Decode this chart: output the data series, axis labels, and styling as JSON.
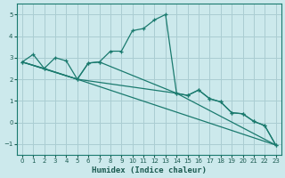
{
  "xlabel": "Humidex (Indice chaleur)",
  "xlim": [
    -0.5,
    23.5
  ],
  "ylim": [
    -1.5,
    5.5
  ],
  "xticks": [
    0,
    1,
    2,
    3,
    4,
    5,
    6,
    7,
    8,
    9,
    10,
    11,
    12,
    13,
    14,
    15,
    16,
    17,
    18,
    19,
    20,
    21,
    22,
    23
  ],
  "yticks": [
    -1,
    0,
    1,
    2,
    3,
    4,
    5
  ],
  "background_color": "#cce9ec",
  "grid_color": "#aacdd2",
  "line_color": "#1a7a6e",
  "line1_x": [
    0,
    1,
    2,
    3,
    4,
    5,
    6,
    7,
    8,
    9,
    10,
    11,
    12,
    13,
    14,
    15,
    16,
    17,
    18,
    19,
    20,
    21,
    22,
    23
  ],
  "line1_y": [
    2.8,
    3.15,
    2.5,
    3.0,
    2.85,
    2.0,
    2.75,
    2.8,
    3.3,
    3.3,
    4.25,
    4.35,
    4.75,
    5.0,
    1.35,
    1.25,
    1.5,
    1.1,
    0.95,
    0.45,
    0.4,
    0.05,
    -0.15,
    -1.05
  ],
  "line2_x": [
    0,
    2,
    5,
    6,
    7,
    14,
    15,
    16,
    17,
    18,
    19,
    20,
    21,
    22,
    23
  ],
  "line2_y": [
    2.8,
    2.5,
    2.0,
    2.75,
    2.8,
    1.35,
    1.25,
    1.5,
    1.1,
    0.95,
    0.45,
    0.4,
    0.05,
    -0.15,
    -1.05
  ],
  "line3_x": [
    0,
    5,
    23
  ],
  "line3_y": [
    2.8,
    2.0,
    -1.05
  ],
  "line4_x": [
    0,
    5,
    14,
    23
  ],
  "line4_y": [
    2.8,
    2.0,
    1.35,
    -1.05
  ]
}
